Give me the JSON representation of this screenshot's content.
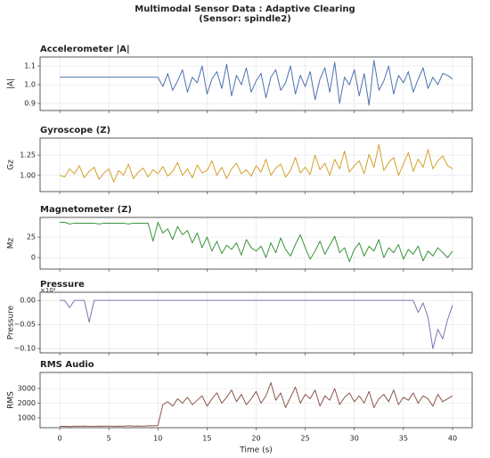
{
  "title": "Multimodal Sensor Data : Adaptive Clearing",
  "subtitle": "(Sensor: spindle2)",
  "chart_data": [
    {
      "type": "line",
      "title": "Accelerometer |A|",
      "ylabel": "|A|",
      "color": "#4c72b0",
      "grid": true,
      "x": [
        0,
        0.5,
        1,
        1.5,
        2,
        2.5,
        3,
        3.5,
        4,
        4.5,
        5,
        5.5,
        6,
        6.5,
        7,
        7.5,
        8,
        8.5,
        9,
        9.5,
        10,
        10.5,
        11,
        11.5,
        12,
        12.5,
        13,
        13.5,
        14,
        14.5,
        15,
        15.5,
        16,
        16.5,
        17,
        17.5,
        18,
        18.5,
        19,
        19.5,
        20,
        20.5,
        21,
        21.5,
        22,
        22.5,
        23,
        23.5,
        24,
        24.5,
        25,
        25.5,
        26,
        26.5,
        27,
        27.5,
        28,
        28.5,
        29,
        29.5,
        30,
        30.5,
        31,
        31.5,
        32,
        32.5,
        33,
        33.5,
        34,
        34.5,
        35,
        35.5,
        36,
        36.5,
        37,
        37.5,
        38,
        38.5,
        39,
        39.5,
        40
      ],
      "values": [
        1.04,
        1.04,
        1.04,
        1.04,
        1.04,
        1.04,
        1.04,
        1.04,
        1.04,
        1.04,
        1.04,
        1.04,
        1.04,
        1.04,
        1.04,
        1.04,
        1.04,
        1.04,
        1.04,
        1.04,
        1.04,
        0.99,
        1.06,
        0.97,
        1.02,
        1.08,
        0.96,
        1.04,
        1.01,
        1.1,
        0.95,
        1.03,
        1.07,
        0.98,
        1.11,
        0.94,
        1.05,
        1.0,
        1.09,
        0.96,
        1.02,
        1.06,
        0.93,
        1.04,
        1.08,
        0.97,
        1.01,
        1.1,
        0.95,
        1.05,
        0.99,
        1.07,
        0.92,
        1.03,
        1.09,
        0.96,
        1.12,
        0.9,
        1.04,
        1.0,
        1.08,
        0.94,
        1.06,
        0.89,
        1.13,
        0.97,
        1.02,
        1.1,
        0.95,
        1.05,
        1.01,
        1.07,
        0.96,
        1.03,
        1.09,
        0.98,
        1.04,
        1.0,
        1.06,
        1.05,
        1.03
      ],
      "xlim": [
        -2,
        42
      ],
      "xticks": [
        0,
        5,
        10,
        15,
        20,
        25,
        30,
        35,
        40
      ],
      "ylim": [
        0.862,
        1.148
      ],
      "yticks": [
        0.9,
        {
          "value": 1,
          "label": "1.0"
        },
        1.1
      ]
    },
    {
      "type": "line",
      "title": "Gyroscope (Z)",
      "ylabel": "Gz",
      "color": "#d4a02a",
      "grid": true,
      "x": [
        0,
        0.5,
        1,
        1.5,
        2,
        2.5,
        3,
        3.5,
        4,
        4.5,
        5,
        5.5,
        6,
        6.5,
        7,
        7.5,
        8,
        8.5,
        9,
        9.5,
        10,
        10.5,
        11,
        11.5,
        12,
        12.5,
        13,
        13.5,
        14,
        14.5,
        15,
        15.5,
        16,
        16.5,
        17,
        17.5,
        18,
        18.5,
        19,
        19.5,
        20,
        20.5,
        21,
        21.5,
        22,
        22.5,
        23,
        23.5,
        24,
        24.5,
        25,
        25.5,
        26,
        26.5,
        27,
        27.5,
        28,
        28.5,
        29,
        29.5,
        30,
        30.5,
        31,
        31.5,
        32,
        32.5,
        33,
        33.5,
        34,
        34.5,
        35,
        35.5,
        36,
        36.5,
        37,
        37.5,
        38,
        38.5,
        39,
        39.5,
        40
      ],
      "values": [
        1.0,
        0.98,
        1.08,
        1.02,
        1.12,
        0.97,
        1.05,
        1.1,
        0.95,
        1.03,
        1.08,
        0.92,
        1.06,
        1.0,
        1.14,
        0.96,
        1.04,
        1.09,
        0.98,
        1.07,
        1.02,
        1.11,
        0.99,
        1.05,
        1.16,
        1.0,
        1.08,
        0.97,
        1.13,
        1.03,
        1.06,
        1.18,
        1.0,
        1.1,
        0.96,
        1.08,
        1.15,
        1.02,
        1.07,
        0.99,
        1.12,
        1.04,
        1.2,
        1.0,
        1.09,
        1.14,
        0.98,
        1.06,
        1.22,
        1.03,
        1.1,
        1.01,
        1.25,
        1.07,
        1.15,
        1.0,
        1.2,
        1.08,
        1.3,
        1.04,
        1.12,
        1.18,
        1.02,
        1.26,
        1.1,
        1.38,
        1.06,
        1.16,
        1.22,
        1.0,
        1.14,
        1.28,
        1.05,
        1.2,
        1.1,
        1.32,
        1.08,
        1.18,
        1.24,
        1.12,
        1.08
      ],
      "xlim": [
        -2,
        42
      ],
      "xticks": [
        0,
        5,
        10,
        15,
        20,
        25,
        30,
        35,
        40
      ],
      "ylim": [
        0.8,
        1.46
      ],
      "yticks": [
        {
          "value": 1,
          "label": "1.00"
        },
        1.25
      ]
    },
    {
      "type": "line",
      "title": "Magnetometer (Z)",
      "ylabel": "Mz",
      "color": "#3a923a",
      "grid": true,
      "x": [
        0,
        0.5,
        1,
        1.5,
        2,
        2.5,
        3,
        3.5,
        4,
        4.5,
        5,
        5.5,
        6,
        6.5,
        7,
        7.5,
        8,
        8.5,
        9,
        9.5,
        10,
        10.5,
        11,
        11.5,
        12,
        12.5,
        13,
        13.5,
        14,
        14.5,
        15,
        15.5,
        16,
        16.5,
        17,
        17.5,
        18,
        18.5,
        19,
        19.5,
        20,
        20.5,
        21,
        21.5,
        22,
        22.5,
        23,
        23.5,
        24,
        24.5,
        25,
        25.5,
        26,
        26.5,
        27,
        27.5,
        28,
        28.5,
        29,
        29.5,
        30,
        30.5,
        31,
        31.5,
        32,
        32.5,
        33,
        33.5,
        34,
        34.5,
        35,
        35.5,
        36,
        36.5,
        37,
        37.5,
        38,
        38.5,
        39,
        39.5,
        40
      ],
      "values": [
        43,
        43,
        41,
        42,
        42,
        42,
        42,
        42,
        41,
        42,
        42,
        42,
        42,
        42,
        41,
        42,
        42,
        42,
        42,
        20,
        43,
        30,
        35,
        22,
        38,
        28,
        33,
        18,
        30,
        12,
        25,
        8,
        20,
        5,
        15,
        10,
        18,
        3,
        22,
        12,
        8,
        14,
        0,
        18,
        6,
        24,
        10,
        2,
        16,
        28,
        12,
        -2,
        8,
        20,
        4,
        15,
        26,
        6,
        12,
        -5,
        10,
        18,
        2,
        14,
        8,
        22,
        0,
        12,
        6,
        16,
        -2,
        10,
        4,
        14,
        -4,
        8,
        2,
        12,
        6,
        0,
        8
      ],
      "xlim": [
        -2,
        42
      ],
      "xticks": [
        0,
        5,
        10,
        15,
        20,
        25,
        30,
        35,
        40
      ],
      "ylim": [
        -14,
        49
      ],
      "yticks": [
        0,
        25
      ]
    },
    {
      "type": "line",
      "title": "Pressure",
      "ylabel": "Pressure",
      "color": "#8172b2",
      "grid": true,
      "y_offset_label": "×10²",
      "x": [
        0,
        0.5,
        1,
        1.5,
        2,
        2.5,
        3,
        3.5,
        4,
        4.5,
        5,
        5.5,
        6,
        6.5,
        7,
        7.5,
        8,
        8.5,
        9,
        9.5,
        10,
        10.5,
        11,
        11.5,
        12,
        12.5,
        13,
        13.5,
        14,
        14.5,
        15,
        15.5,
        16,
        16.5,
        17,
        17.5,
        18,
        18.5,
        19,
        19.5,
        20,
        20.5,
        21,
        21.5,
        22,
        22.5,
        23,
        23.5,
        24,
        24.5,
        25,
        25.5,
        26,
        26.5,
        27,
        27.5,
        28,
        28.5,
        29,
        29.5,
        30,
        30.5,
        31,
        31.5,
        32,
        32.5,
        33,
        33.5,
        34,
        34.5,
        35,
        35.5,
        36,
        36.5,
        37,
        37.5,
        38,
        38.5,
        39,
        39.5,
        40
      ],
      "values": [
        0,
        0,
        -0.015,
        0,
        0,
        0,
        -0.045,
        0,
        0,
        0,
        0,
        0,
        0,
        0,
        0,
        0,
        0,
        0,
        0,
        0,
        0,
        0,
        0,
        0,
        0,
        0,
        0,
        0,
        0,
        0,
        0,
        0,
        0,
        0,
        0,
        0,
        0,
        0,
        0,
        0,
        0,
        0,
        0,
        0,
        0,
        0,
        0,
        0,
        0,
        0,
        0,
        0,
        0,
        0,
        0,
        0,
        0,
        0,
        0,
        0,
        0,
        0,
        0,
        0,
        0,
        0,
        0,
        0,
        0,
        0,
        0,
        0,
        0,
        -0.025,
        -0.005,
        -0.035,
        -0.1,
        -0.06,
        -0.08,
        -0.04,
        -0.01
      ],
      "xlim": [
        -2,
        42
      ],
      "xticks": [
        0,
        5,
        10,
        15,
        20,
        25,
        30,
        35,
        40
      ],
      "ylim": [
        -0.109,
        0.017
      ],
      "yticks": [
        {
          "value": 0,
          "label": "0.00"
        },
        {
          "value": -0.05,
          "label": "−0.05"
        },
        {
          "value": -0.1,
          "label": "−0.10"
        }
      ]
    },
    {
      "type": "line",
      "title": "RMS Audio",
      "ylabel": "RMS",
      "xlabel": "Time (s)",
      "color": "#8c564b",
      "grid": true,
      "x": [
        0,
        0.5,
        1,
        1.5,
        2,
        2.5,
        3,
        3.5,
        4,
        4.5,
        5,
        5.5,
        6,
        6.5,
        7,
        7.5,
        8,
        8.5,
        9,
        9.5,
        10,
        10.5,
        11,
        11.5,
        12,
        12.5,
        13,
        13.5,
        14,
        14.5,
        15,
        15.5,
        16,
        16.5,
        17,
        17.5,
        18,
        18.5,
        19,
        19.5,
        20,
        20.5,
        21,
        21.5,
        22,
        22.5,
        23,
        23.5,
        24,
        24.5,
        25,
        25.5,
        26,
        26.5,
        27,
        27.5,
        28,
        28.5,
        29,
        29.5,
        30,
        30.5,
        31,
        31.5,
        32,
        32.5,
        33,
        33.5,
        34,
        34.5,
        35,
        35.5,
        36,
        36.5,
        37,
        37.5,
        38,
        38.5,
        39,
        39.5,
        40
      ],
      "values": [
        420,
        430,
        410,
        440,
        420,
        450,
        430,
        420,
        440,
        430,
        450,
        420,
        440,
        430,
        460,
        440,
        450,
        430,
        470,
        460,
        480,
        1900,
        2100,
        1800,
        2300,
        2000,
        2400,
        1900,
        2200,
        2500,
        1800,
        2300,
        2700,
        2000,
        2400,
        2900,
        2100,
        2600,
        1900,
        2300,
        2800,
        2000,
        2500,
        3400,
        2200,
        2700,
        1700,
        2400,
        3100,
        2000,
        2600,
        2300,
        2900,
        1800,
        2500,
        2200,
        3000,
        1900,
        2400,
        2700,
        2100,
        2500,
        2000,
        2800,
        1700,
        2300,
        2600,
        2100,
        2900,
        1900,
        2400,
        2200,
        2700,
        2000,
        2500,
        2300,
        1800,
        2600,
        2100,
        2300,
        2500
      ],
      "xlim": [
        -2,
        42
      ],
      "xticks": [
        0,
        5,
        10,
        15,
        20,
        25,
        30,
        35,
        40
      ],
      "ylim": [
        333,
        4090
      ],
      "yticks": [
        1000,
        2000,
        3000
      ]
    }
  ]
}
